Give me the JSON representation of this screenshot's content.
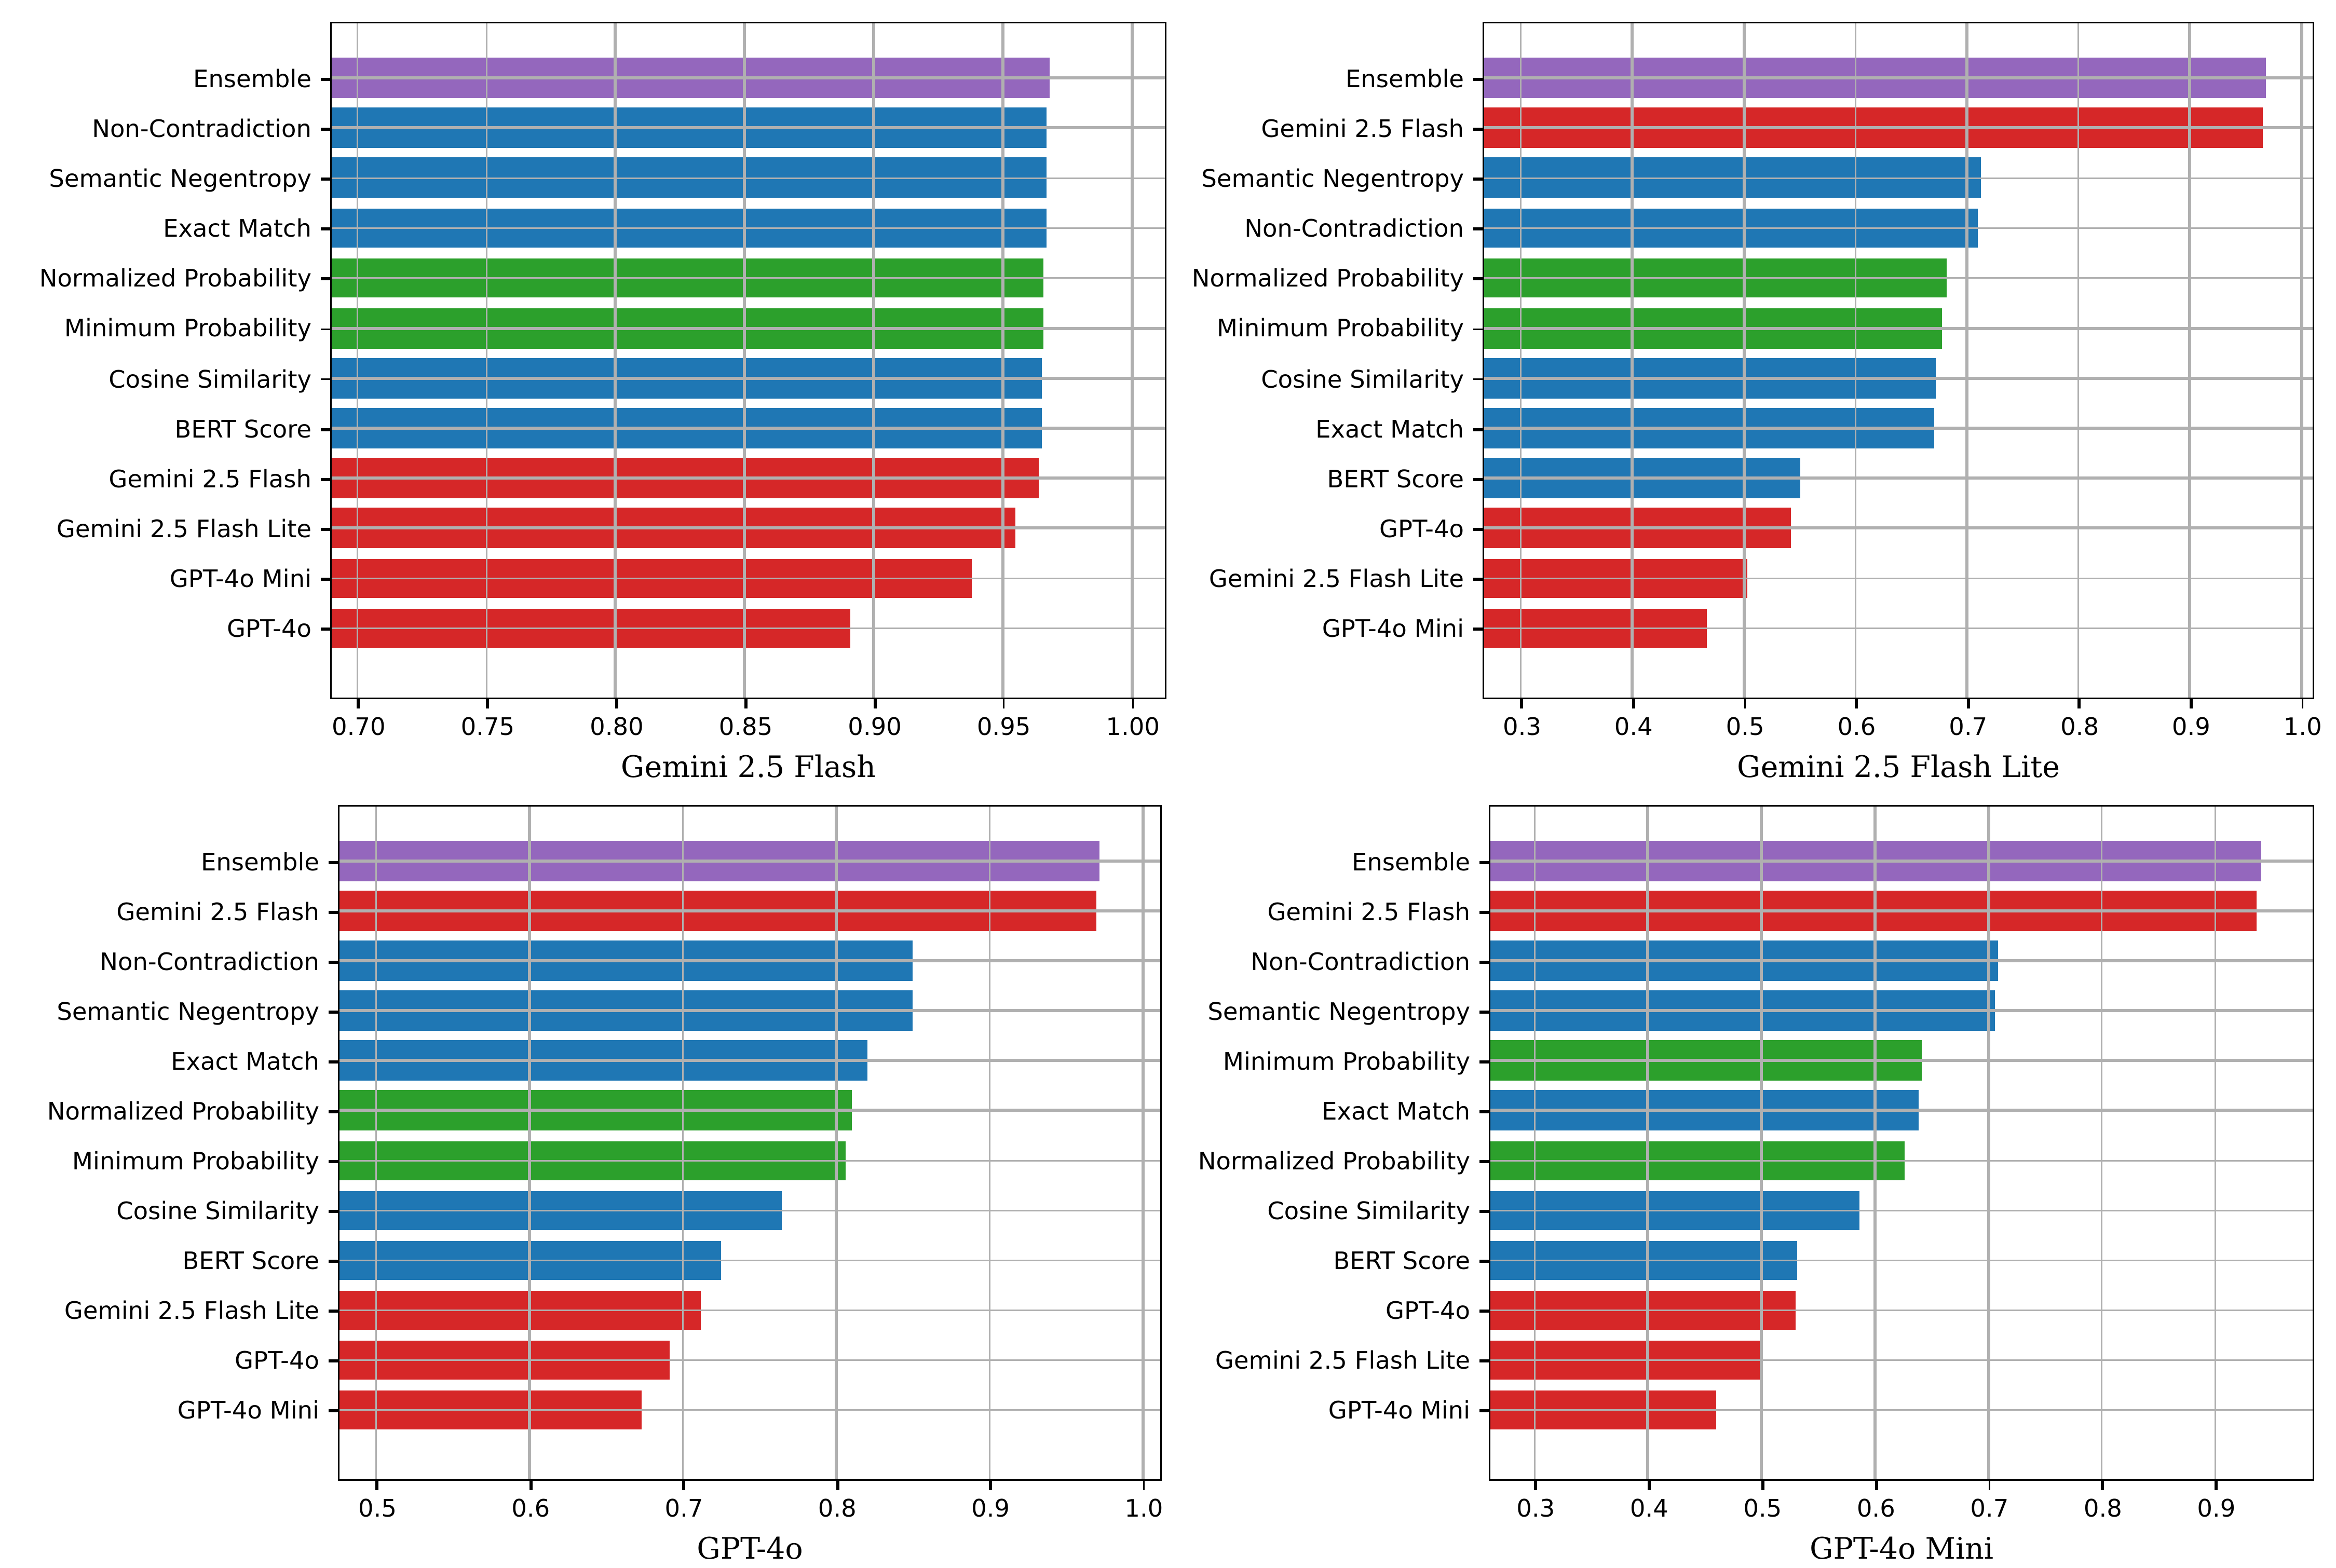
{
  "figure": {
    "description": "2x2 grid of horizontal bar charts comparing detection methods across judged models",
    "grid_color": "#b0b0b0",
    "background": "#ffffff"
  },
  "palette": {
    "purple": "#9467bd",
    "blue": "#1f77b4",
    "green": "#2ca02c",
    "red": "#d62728",
    "spine": "#000000"
  },
  "chart_data": [
    {
      "id": "tl",
      "type": "bar",
      "orientation": "horizontal",
      "xlabel": "Gemini 2.5 Flash",
      "xlim": [
        0.69,
        1.012
      ],
      "grid": true,
      "xticks": [
        {
          "v": 0.7,
          "label": "0.70"
        },
        {
          "v": 0.75,
          "label": "0.75"
        },
        {
          "v": 0.8,
          "label": "0.80"
        },
        {
          "v": 0.85,
          "label": "0.85"
        },
        {
          "v": 0.9,
          "label": "0.90"
        },
        {
          "v": 0.95,
          "label": "0.95"
        },
        {
          "v": 1.0,
          "label": "1.00"
        }
      ],
      "rows": [
        {
          "label": "Ensemble",
          "color": "purple",
          "value": 0.968
        },
        {
          "label": "Non-Contradiction",
          "color": "blue",
          "value": 0.967
        },
        {
          "label": "Semantic Negentropy",
          "color": "blue",
          "value": 0.967
        },
        {
          "label": "Exact Match",
          "color": "blue",
          "value": 0.967
        },
        {
          "label": "Normalized Probability",
          "color": "green",
          "value": 0.966
        },
        {
          "label": "Minimum Probability",
          "color": "green",
          "value": 0.966
        },
        {
          "label": "Cosine Similarity",
          "color": "blue",
          "value": 0.965
        },
        {
          "label": "BERT Score",
          "color": "blue",
          "value": 0.965
        },
        {
          "label": "Gemini 2.5 Flash",
          "color": "red",
          "value": 0.964
        },
        {
          "label": "Gemini 2.5 Flash Lite",
          "color": "red",
          "value": 0.955
        },
        {
          "label": "GPT-4o Mini",
          "color": "red",
          "value": 0.938
        },
        {
          "label": "GPT-4o",
          "color": "red",
          "value": 0.891
        }
      ]
    },
    {
      "id": "tr",
      "type": "bar",
      "orientation": "horizontal",
      "xlabel": "Gemini 2.5 Flash Lite",
      "xlim": [
        0.267,
        1.008
      ],
      "grid": true,
      "xticks": [
        {
          "v": 0.3,
          "label": "0.3"
        },
        {
          "v": 0.4,
          "label": "0.4"
        },
        {
          "v": 0.5,
          "label": "0.5"
        },
        {
          "v": 0.6,
          "label": "0.6"
        },
        {
          "v": 0.7,
          "label": "0.7"
        },
        {
          "v": 0.8,
          "label": "0.8"
        },
        {
          "v": 0.9,
          "label": "0.9"
        },
        {
          "v": 1.0,
          "label": "1.0"
        }
      ],
      "rows": [
        {
          "label": "Ensemble",
          "color": "purple",
          "value": 0.968
        },
        {
          "label": "Gemini 2.5 Flash",
          "color": "red",
          "value": 0.965
        },
        {
          "label": "Semantic Negentropy",
          "color": "blue",
          "value": 0.712
        },
        {
          "label": "Non-Contradiction",
          "color": "blue",
          "value": 0.71
        },
        {
          "label": "Normalized Probability",
          "color": "green",
          "value": 0.682
        },
        {
          "label": "Minimum Probability",
          "color": "green",
          "value": 0.678
        },
        {
          "label": "Cosine Similarity",
          "color": "blue",
          "value": 0.672
        },
        {
          "label": "Exact Match",
          "color": "blue",
          "value": 0.67
        },
        {
          "label": "BERT Score",
          "color": "blue",
          "value": 0.55
        },
        {
          "label": "GPT-4o",
          "color": "red",
          "value": 0.542
        },
        {
          "label": "Gemini 2.5 Flash Lite",
          "color": "red",
          "value": 0.503
        },
        {
          "label": "GPT-4o Mini",
          "color": "red",
          "value": 0.467
        }
      ]
    },
    {
      "id": "bl",
      "type": "bar",
      "orientation": "horizontal",
      "xlabel": "GPT-4o",
      "xlim": [
        0.476,
        1.01
      ],
      "grid": true,
      "xticks": [
        {
          "v": 0.5,
          "label": "0.5"
        },
        {
          "v": 0.6,
          "label": "0.6"
        },
        {
          "v": 0.7,
          "label": "0.7"
        },
        {
          "v": 0.8,
          "label": "0.8"
        },
        {
          "v": 0.9,
          "label": "0.9"
        },
        {
          "v": 1.0,
          "label": "1.0"
        }
      ],
      "rows": [
        {
          "label": "Ensemble",
          "color": "purple",
          "value": 0.972
        },
        {
          "label": "Gemini 2.5 Flash",
          "color": "red",
          "value": 0.97
        },
        {
          "label": "Non-Contradiction",
          "color": "blue",
          "value": 0.85
        },
        {
          "label": "Semantic Negentropy",
          "color": "blue",
          "value": 0.85
        },
        {
          "label": "Exact Match",
          "color": "blue",
          "value": 0.82
        },
        {
          "label": "Normalized Probability",
          "color": "green",
          "value": 0.81
        },
        {
          "label": "Minimum Probability",
          "color": "green",
          "value": 0.806
        },
        {
          "label": "Cosine Similarity",
          "color": "blue",
          "value": 0.765
        },
        {
          "label": "BERT Score",
          "color": "blue",
          "value": 0.725
        },
        {
          "label": "Gemini 2.5 Flash Lite",
          "color": "red",
          "value": 0.712
        },
        {
          "label": "GPT-4o",
          "color": "red",
          "value": 0.691
        },
        {
          "label": "GPT-4o Mini",
          "color": "red",
          "value": 0.673
        }
      ]
    },
    {
      "id": "br",
      "type": "bar",
      "orientation": "horizontal",
      "xlabel": "GPT-4o Mini",
      "xlim": [
        0.261,
        0.984
      ],
      "grid": true,
      "xticks": [
        {
          "v": 0.3,
          "label": "0.3"
        },
        {
          "v": 0.4,
          "label": "0.4"
        },
        {
          "v": 0.5,
          "label": "0.5"
        },
        {
          "v": 0.6,
          "label": "0.6"
        },
        {
          "v": 0.7,
          "label": "0.7"
        },
        {
          "v": 0.8,
          "label": "0.8"
        },
        {
          "v": 0.9,
          "label": "0.9"
        }
      ],
      "rows": [
        {
          "label": "Ensemble",
          "color": "purple",
          "value": 0.941
        },
        {
          "label": "Gemini 2.5 Flash",
          "color": "red",
          "value": 0.937
        },
        {
          "label": "Non-Contradiction",
          "color": "blue",
          "value": 0.709
        },
        {
          "label": "Semantic Negentropy",
          "color": "blue",
          "value": 0.706
        },
        {
          "label": "Minimum Probability",
          "color": "green",
          "value": 0.641
        },
        {
          "label": "Exact Match",
          "color": "blue",
          "value": 0.639
        },
        {
          "label": "Normalized Probability",
          "color": "green",
          "value": 0.626
        },
        {
          "label": "Cosine Similarity",
          "color": "blue",
          "value": 0.587
        },
        {
          "label": "BERT Score",
          "color": "blue",
          "value": 0.531
        },
        {
          "label": "GPT-4o",
          "color": "red",
          "value": 0.53
        },
        {
          "label": "Gemini 2.5 Flash Lite",
          "color": "red",
          "value": 0.501
        },
        {
          "label": "GPT-4o Mini",
          "color": "red",
          "value": 0.46
        }
      ]
    }
  ]
}
